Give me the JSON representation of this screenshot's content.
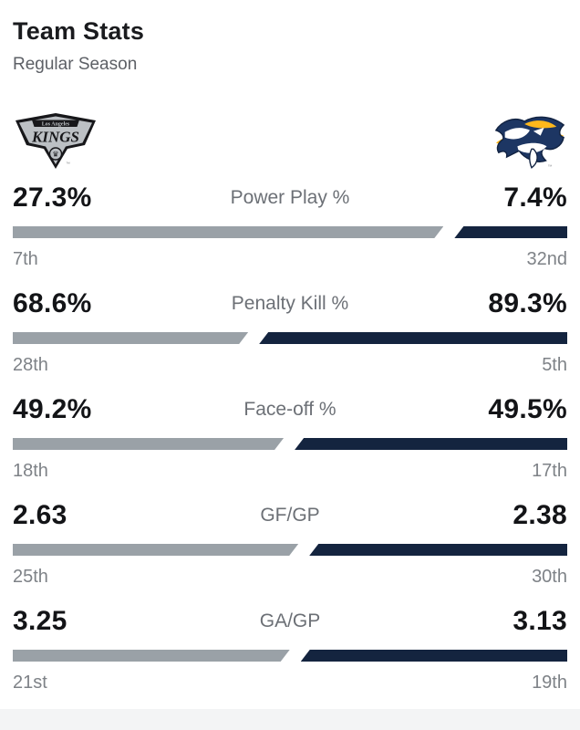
{
  "header": {
    "title": "Team Stats",
    "subtitle": "Regular Season"
  },
  "teams": {
    "away": {
      "name": "Los Angeles Kings",
      "logo_icon": "kings-shield-logo",
      "logo_text_top": "Los Angeles",
      "logo_text_main": "KINGS",
      "trademark": "™"
    },
    "home": {
      "name": "Nashville Predators",
      "logo_icon": "predators-sabertooth-logo",
      "trademark": "™"
    }
  },
  "colors": {
    "away_bar": "#9aa1a7",
    "home_bar": "#14243f",
    "value_text": "#131417",
    "label_text": "#6c7076",
    "rank_text": "#7e8287",
    "kings_silver": "#bcc0c4",
    "kings_black": "#17171a",
    "predators_navy": "#1d3663",
    "predators_gold": "#FFB81C",
    "bottom_strip": "#f3f4f5"
  },
  "chart_data": {
    "type": "bar",
    "title": "Team Stats",
    "subtitle": "Regular Season",
    "layout": "paired horizontal comparison bars, away team left (gray), home team right (navy), slanted junction proportional to away/(away+home)",
    "categories": [
      "Power Play %",
      "Penalty Kill %",
      "Face-off %",
      "GF/GP",
      "GA/GP"
    ],
    "series": [
      {
        "name": "Los Angeles Kings",
        "values": [
          27.3,
          68.6,
          49.2,
          2.63,
          3.25
        ],
        "ranks": [
          "7th",
          "28th",
          "18th",
          "25th",
          "21st"
        ]
      },
      {
        "name": "Nashville Predators",
        "values": [
          7.4,
          89.3,
          49.5,
          2.38,
          3.13
        ],
        "ranks": [
          "32nd",
          "5th",
          "17th",
          "30th",
          "19th"
        ]
      }
    ],
    "stats": [
      {
        "label": "Power Play %",
        "away_value": "27.3%",
        "home_value": "7.4%",
        "away_rank": "7th",
        "home_rank": "32nd",
        "away_num": 27.3,
        "home_num": 7.4
      },
      {
        "label": "Penalty Kill %",
        "away_value": "68.6%",
        "home_value": "89.3%",
        "away_rank": "28th",
        "home_rank": "5th",
        "away_num": 68.6,
        "home_num": 89.3
      },
      {
        "label": "Face-off %",
        "away_value": "49.2%",
        "home_value": "49.5%",
        "away_rank": "18th",
        "home_rank": "17th",
        "away_num": 49.2,
        "home_num": 49.5
      },
      {
        "label": "GF/GP",
        "away_value": "2.63",
        "home_value": "2.38",
        "away_rank": "25th",
        "home_rank": "30th",
        "away_num": 2.63,
        "home_num": 2.38
      },
      {
        "label": "GA/GP",
        "away_value": "3.25",
        "home_value": "3.13",
        "away_rank": "21st",
        "home_rank": "19th",
        "away_num": 3.25,
        "home_num": 3.13
      }
    ]
  }
}
